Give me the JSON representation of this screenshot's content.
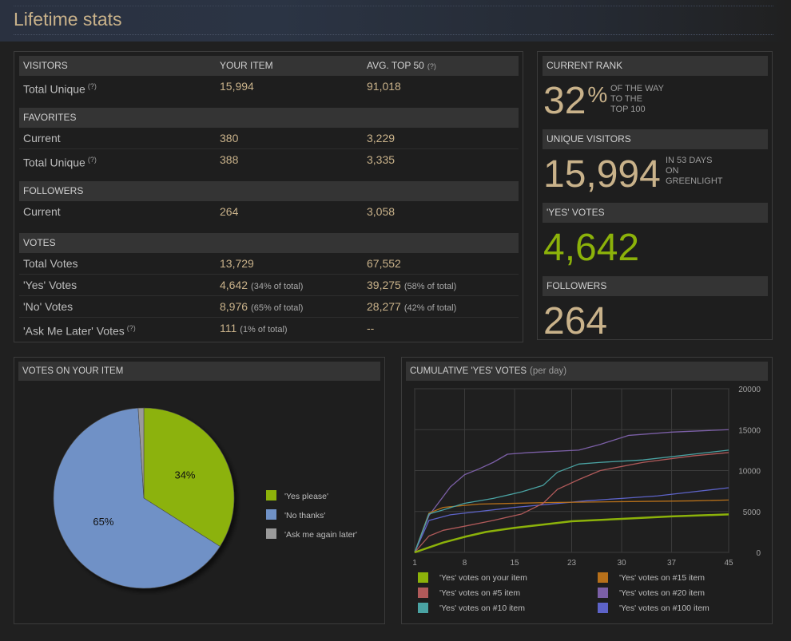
{
  "page": {
    "title": "Lifetime stats"
  },
  "stats": {
    "headers": {
      "visitors": "VISITORS",
      "your_item": "YOUR ITEM",
      "avg_top50": "AVG. TOP 50"
    },
    "help_mark": "(?)",
    "sections": {
      "favorites": "FAVORITES",
      "followers": "FOLLOWERS",
      "votes": "VOTES"
    },
    "rows": {
      "visitors_total_unique": {
        "label": "Total Unique",
        "yours": "15,994",
        "avg": "91,018"
      },
      "fav_current": {
        "label": "Current",
        "yours": "380",
        "avg": "3,229"
      },
      "fav_total_unique": {
        "label": "Total Unique",
        "yours": "388",
        "avg": "3,335"
      },
      "fol_current": {
        "label": "Current",
        "yours": "264",
        "avg": "3,058"
      },
      "votes_total": {
        "label": "Total Votes",
        "yours": "13,729",
        "avg": "67,552"
      },
      "votes_yes": {
        "label": "'Yes' Votes",
        "yours": "4,642",
        "yours_pct": "(34% of total)",
        "avg": "39,275",
        "avg_pct": "(58% of total)"
      },
      "votes_no": {
        "label": "'No' Votes",
        "yours": "8,976",
        "yours_pct": "(65% of total)",
        "avg": "28,277",
        "avg_pct": "(42% of total)"
      },
      "votes_later": {
        "label": "'Ask Me Later' Votes",
        "yours": "111",
        "yours_pct": "(1% of total)",
        "avg": "--"
      }
    }
  },
  "summary": {
    "rank": {
      "label": "CURRENT RANK",
      "value": "32",
      "unit": "%",
      "note": [
        "OF THE WAY",
        "TO THE",
        "TOP 100"
      ]
    },
    "visitors": {
      "label": "UNIQUE VISITORS",
      "value": "15,994",
      "note": [
        "IN 53 DAYS",
        "ON",
        "GREENLIGHT"
      ]
    },
    "yes_votes": {
      "label": "'YES' VOTES",
      "value": "4,642"
    },
    "followers": {
      "label": "FOLLOWERS",
      "value": "264"
    }
  },
  "colors": {
    "gold": "#c9b28a",
    "green": "#8cb20a",
    "blue": "#6f91c6",
    "gray": "#9a9a9a",
    "line5": "#b05a5a",
    "line10": "#4aa3a3",
    "line15": "#b7701a",
    "line20": "#7b5fa6",
    "line100": "#5d63c8"
  },
  "chart_data": [
    {
      "type": "pie",
      "title": "VOTES ON YOUR ITEM",
      "slices": [
        {
          "label": "'Yes please'",
          "value": 34,
          "display": "34%"
        },
        {
          "label": "'No thanks'",
          "value": 65,
          "display": "65%"
        },
        {
          "label": "'Ask me again later'",
          "value": 1,
          "display": ""
        }
      ]
    },
    {
      "type": "line",
      "title": "CUMULATIVE 'YES' VOTES",
      "subtitle": "(per day)",
      "xlim": [
        1,
        45
      ],
      "ylim": [
        0,
        20000
      ],
      "x_ticks": [
        "1",
        "8",
        "15",
        "23",
        "30",
        "37",
        "45"
      ],
      "y_ticks": [
        "0",
        "5000",
        "10000",
        "15000",
        "20000"
      ],
      "grid": true,
      "legend_position": "bottom",
      "series": [
        {
          "name": "'Yes' votes on your item",
          "color_key": "green",
          "x": [
            1,
            3,
            5,
            8,
            11,
            15,
            20,
            23,
            30,
            37,
            45
          ],
          "y": [
            0,
            600,
            1200,
            1900,
            2500,
            3000,
            3500,
            3800,
            4100,
            4400,
            4642
          ]
        },
        {
          "name": "'Yes' votes on #5 item",
          "color_key": "line5",
          "x": [
            1,
            3,
            5,
            8,
            12,
            16,
            19,
            21,
            24,
            27,
            33,
            40,
            45
          ],
          "y": [
            0,
            2000,
            2700,
            3200,
            3900,
            4700,
            6000,
            7700,
            8900,
            10000,
            11000,
            11800,
            12200
          ]
        },
        {
          "name": "'Yes' votes on #10 item",
          "color_key": "line10",
          "x": [
            1,
            3,
            5,
            8,
            12,
            16,
            19,
            21,
            24,
            27,
            33,
            40,
            45
          ],
          "y": [
            0,
            4700,
            5200,
            6000,
            6600,
            7400,
            8200,
            9800,
            10800,
            11000,
            11300,
            12000,
            12500
          ]
        },
        {
          "name": "'Yes' votes on #15 item",
          "color_key": "line15",
          "x": [
            1,
            3,
            5,
            10,
            20,
            30,
            40,
            45
          ],
          "y": [
            0,
            4800,
            5500,
            5900,
            6100,
            6200,
            6300,
            6400
          ]
        },
        {
          "name": "'Yes' votes on #20 item",
          "color_key": "line20",
          "x": [
            1,
            3,
            6,
            8,
            10,
            12,
            14,
            17,
            24,
            27,
            31,
            37,
            45
          ],
          "y": [
            0,
            4500,
            8000,
            9500,
            10200,
            11000,
            12000,
            12200,
            12500,
            13200,
            14300,
            14700,
            15000
          ]
        },
        {
          "name": "'Yes' votes on #100 item",
          "color_key": "line100",
          "x": [
            1,
            3,
            6,
            10,
            15,
            20,
            25,
            30,
            35,
            40,
            45
          ],
          "y": [
            0,
            3900,
            4600,
            5000,
            5500,
            5900,
            6300,
            6600,
            6900,
            7400,
            7900
          ]
        }
      ]
    }
  ]
}
